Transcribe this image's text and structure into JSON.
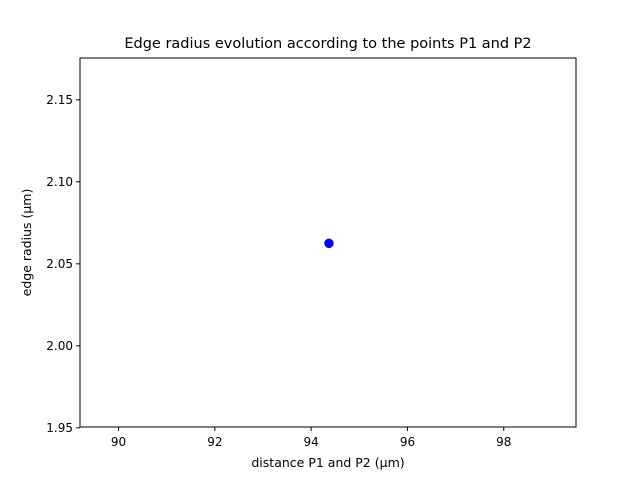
{
  "chart_data": {
    "type": "scatter",
    "title": "Edge radius evolution according to the points P1 and P2",
    "xlabel": "distance P1 and P2 (µm)",
    "ylabel": "edge radius (µm)",
    "xlim": [
      89.2,
      99.5
    ],
    "ylim": [
      1.9505,
      2.1755
    ],
    "xticks": [
      90,
      92,
      94,
      96,
      98
    ],
    "xtick_labels": [
      "90",
      "92",
      "94",
      "96",
      "98"
    ],
    "yticks": [
      1.95,
      2.0,
      2.05,
      2.1,
      2.15
    ],
    "ytick_labels": [
      "1.95",
      "2.00",
      "2.05",
      "2.10",
      "2.15"
    ],
    "grid": false,
    "series": [
      {
        "color": "#0000ff",
        "marker": "circle",
        "points": [
          {
            "x": 94.37,
            "y": 2.0625
          }
        ]
      }
    ]
  }
}
